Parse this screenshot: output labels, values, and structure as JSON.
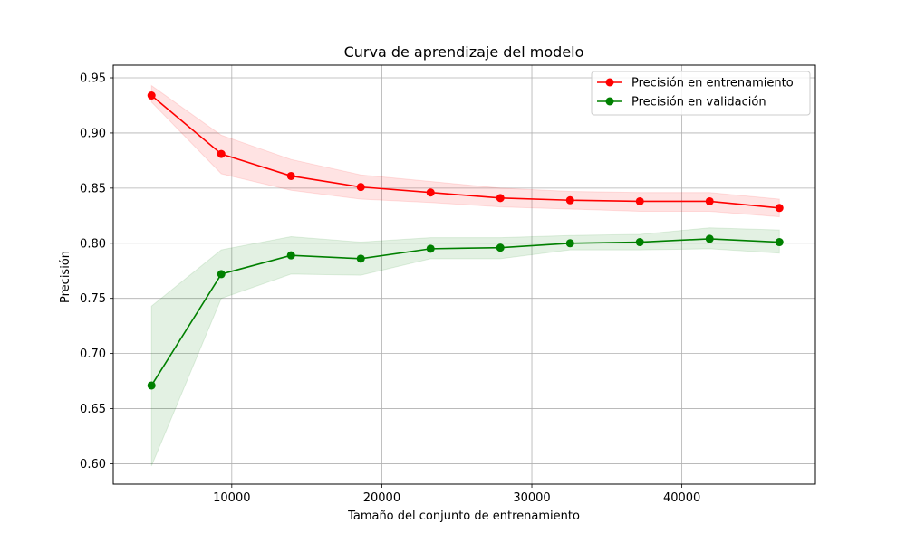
{
  "chart_data": {
    "type": "line",
    "title": "Curva de aprendizaje del modelo",
    "xlabel": "Tamaño del conjunto de entrenamiento",
    "ylabel": "Precisión",
    "xlim": [
      2100,
      48900
    ],
    "ylim": [
      0.5815,
      0.9615
    ],
    "x_ticks": [
      10000,
      20000,
      30000,
      40000
    ],
    "x_tick_labels": [
      "10000",
      "20000",
      "30000",
      "40000"
    ],
    "y_ticks": [
      0.6,
      0.65,
      0.7,
      0.75,
      0.8,
      0.85,
      0.9,
      0.95
    ],
    "y_tick_labels": [
      "0.60",
      "0.65",
      "0.70",
      "0.75",
      "0.80",
      "0.85",
      "0.90",
      "0.95"
    ],
    "grid": true,
    "legend_position": "top-right",
    "x": [
      4650,
      9300,
      13950,
      18600,
      23250,
      27900,
      32550,
      37200,
      41850,
      46500
    ],
    "series": [
      {
        "name": "Precisión en entrenamiento",
        "color": "#ff0000",
        "values": [
          0.934,
          0.881,
          0.861,
          0.851,
          0.846,
          0.841,
          0.839,
          0.838,
          0.838,
          0.832
        ],
        "band_lower": [
          0.928,
          0.863,
          0.848,
          0.84,
          0.837,
          0.833,
          0.831,
          0.829,
          0.829,
          0.824
        ],
        "band_upper": [
          0.943,
          0.898,
          0.876,
          0.862,
          0.856,
          0.85,
          0.847,
          0.846,
          0.846,
          0.84
        ]
      },
      {
        "name": "Precisión en validación",
        "color": "#008000",
        "values": [
          0.671,
          0.772,
          0.789,
          0.786,
          0.795,
          0.796,
          0.8,
          0.801,
          0.804,
          0.801
        ],
        "band_lower": [
          0.598,
          0.75,
          0.772,
          0.771,
          0.786,
          0.786,
          0.794,
          0.794,
          0.795,
          0.791
        ],
        "band_upper": [
          0.743,
          0.794,
          0.806,
          0.801,
          0.805,
          0.805,
          0.807,
          0.808,
          0.814,
          0.812
        ]
      }
    ]
  }
}
